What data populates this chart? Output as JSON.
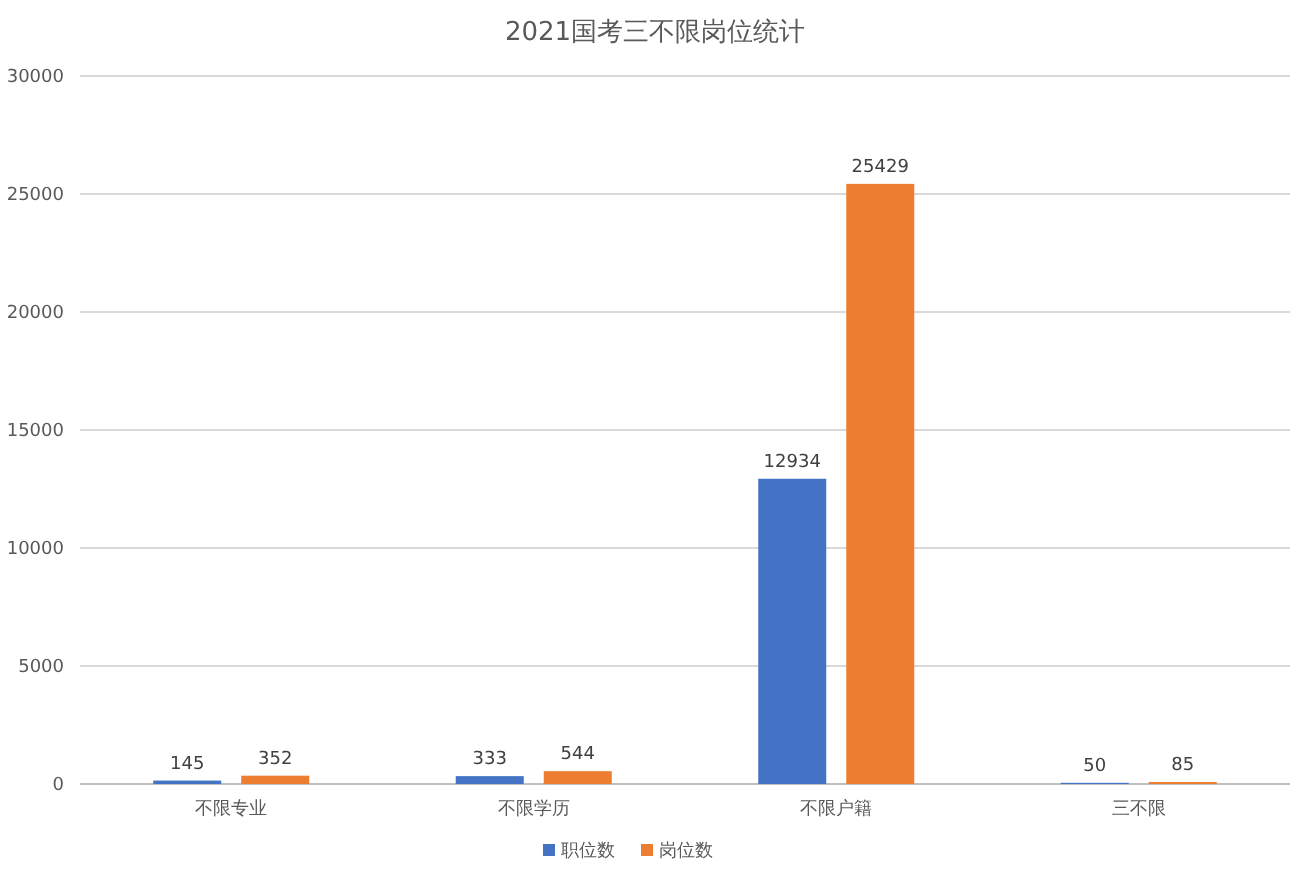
{
  "chart_data": {
    "type": "bar",
    "title": "2021国考三不限岗位统计",
    "categories": [
      "不限专业",
      "不限学历",
      "不限户籍",
      "三不限"
    ],
    "series": [
      {
        "name": "职位数",
        "color": "#4472c4",
        "values": [
          145,
          333,
          12934,
          50
        ]
      },
      {
        "name": "岗位数",
        "color": "#ed7d31",
        "values": [
          352,
          544,
          25429,
          85
        ]
      }
    ],
    "ylim": [
      0,
      30000
    ],
    "yticks": [
      0,
      5000,
      10000,
      15000,
      20000,
      25000,
      30000
    ],
    "grid": "y",
    "legend": "bottom",
    "data_labels": true
  }
}
